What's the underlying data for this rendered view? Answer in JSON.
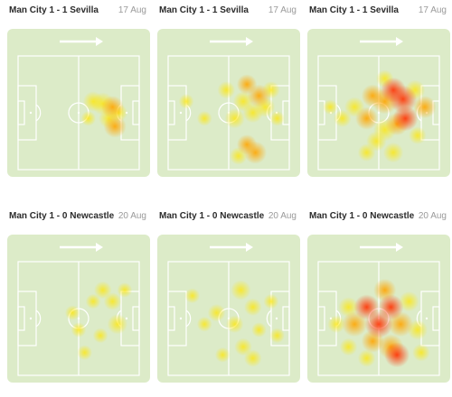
{
  "matches": [
    {
      "title": "Man City 1 - 1 Sevilla",
      "date": "17 Aug",
      "arrow_icon": "right-arrow-icon",
      "blobs": [
        [
          0.62,
          0.4,
          0.8,
          "y"
        ],
        [
          0.7,
          0.42,
          0.9,
          "y"
        ],
        [
          0.78,
          0.45,
          0.9,
          "o"
        ],
        [
          0.75,
          0.55,
          0.8,
          "y"
        ],
        [
          0.8,
          0.62,
          0.9,
          "o"
        ],
        [
          0.58,
          0.55,
          0.6,
          "y"
        ],
        [
          0.83,
          0.5,
          0.7,
          "y"
        ]
      ]
    },
    {
      "title": "Man City 1 - 1 Sevilla",
      "date": "17 Aug",
      "arrow_icon": "right-arrow-icon",
      "blobs": [
        [
          0.15,
          0.4,
          0.6,
          "y"
        ],
        [
          0.3,
          0.55,
          0.6,
          "y"
        ],
        [
          0.48,
          0.3,
          0.7,
          "y"
        ],
        [
          0.55,
          0.55,
          0.8,
          "y"
        ],
        [
          0.62,
          0.4,
          0.8,
          "y"
        ],
        [
          0.65,
          0.25,
          0.8,
          "o"
        ],
        [
          0.75,
          0.35,
          0.9,
          "o"
        ],
        [
          0.8,
          0.45,
          0.8,
          "y"
        ],
        [
          0.7,
          0.5,
          0.8,
          "y"
        ],
        [
          0.65,
          0.78,
          0.8,
          "o"
        ],
        [
          0.72,
          0.85,
          0.9,
          "o"
        ],
        [
          0.58,
          0.88,
          0.7,
          "y"
        ],
        [
          0.85,
          0.3,
          0.7,
          "y"
        ],
        [
          0.9,
          0.55,
          0.6,
          "y"
        ]
      ]
    },
    {
      "title": "Man City 1 - 1 Sevilla",
      "date": "17 Aug",
      "arrow_icon": "right-arrow-icon",
      "blobs": [
        [
          0.1,
          0.45,
          0.6,
          "y"
        ],
        [
          0.2,
          0.55,
          0.7,
          "y"
        ],
        [
          0.3,
          0.45,
          0.8,
          "y"
        ],
        [
          0.4,
          0.55,
          0.9,
          "o"
        ],
        [
          0.45,
          0.35,
          0.9,
          "o"
        ],
        [
          0.55,
          0.4,
          1.0,
          "o"
        ],
        [
          0.62,
          0.3,
          1.0,
          "r"
        ],
        [
          0.7,
          0.38,
          1.1,
          "r"
        ],
        [
          0.72,
          0.55,
          1.0,
          "r"
        ],
        [
          0.65,
          0.6,
          0.9,
          "o"
        ],
        [
          0.55,
          0.65,
          0.9,
          "y"
        ],
        [
          0.48,
          0.75,
          0.8,
          "y"
        ],
        [
          0.4,
          0.85,
          0.7,
          "y"
        ],
        [
          0.62,
          0.85,
          0.8,
          "y"
        ],
        [
          0.8,
          0.3,
          0.8,
          "y"
        ],
        [
          0.88,
          0.45,
          0.9,
          "o"
        ],
        [
          0.82,
          0.7,
          0.7,
          "y"
        ],
        [
          0.55,
          0.2,
          0.7,
          "y"
        ]
      ]
    },
    {
      "title": "Man City 1 - 0 Newcastle",
      "date": "20 Aug",
      "arrow_icon": "right-arrow-icon",
      "blobs": [
        [
          0.45,
          0.45,
          0.6,
          "y"
        ],
        [
          0.5,
          0.6,
          0.6,
          "y"
        ],
        [
          0.62,
          0.35,
          0.6,
          "y"
        ],
        [
          0.7,
          0.25,
          0.7,
          "y"
        ],
        [
          0.78,
          0.35,
          0.7,
          "y"
        ],
        [
          0.82,
          0.55,
          0.8,
          "y"
        ],
        [
          0.68,
          0.65,
          0.6,
          "y"
        ],
        [
          0.55,
          0.8,
          0.6,
          "y"
        ],
        [
          0.88,
          0.25,
          0.6,
          "y"
        ]
      ]
    },
    {
      "title": "Man City 1 - 0 Newcastle",
      "date": "20 Aug",
      "arrow_icon": "right-arrow-icon",
      "blobs": [
        [
          0.2,
          0.3,
          0.6,
          "y"
        ],
        [
          0.3,
          0.55,
          0.6,
          "y"
        ],
        [
          0.4,
          0.45,
          0.7,
          "y"
        ],
        [
          0.55,
          0.55,
          0.7,
          "y"
        ],
        [
          0.6,
          0.25,
          0.8,
          "y"
        ],
        [
          0.7,
          0.4,
          0.7,
          "y"
        ],
        [
          0.75,
          0.6,
          0.6,
          "y"
        ],
        [
          0.62,
          0.75,
          0.7,
          "y"
        ],
        [
          0.7,
          0.85,
          0.7,
          "y"
        ],
        [
          0.85,
          0.35,
          0.6,
          "y"
        ],
        [
          0.45,
          0.82,
          0.6,
          "y"
        ],
        [
          0.9,
          0.65,
          0.6,
          "y"
        ]
      ]
    },
    {
      "title": "Man City 1 - 0 Newcastle",
      "date": "20 Aug",
      "arrow_icon": "right-arrow-icon",
      "blobs": [
        [
          0.15,
          0.55,
          0.7,
          "y"
        ],
        [
          0.25,
          0.4,
          0.8,
          "y"
        ],
        [
          0.3,
          0.55,
          1.0,
          "o"
        ],
        [
          0.4,
          0.4,
          1.0,
          "r"
        ],
        [
          0.5,
          0.55,
          1.1,
          "r"
        ],
        [
          0.6,
          0.4,
          1.0,
          "r"
        ],
        [
          0.68,
          0.55,
          1.0,
          "o"
        ],
        [
          0.6,
          0.75,
          1.0,
          "o"
        ],
        [
          0.65,
          0.82,
          1.0,
          "r"
        ],
        [
          0.45,
          0.7,
          0.9,
          "o"
        ],
        [
          0.55,
          0.25,
          0.9,
          "o"
        ],
        [
          0.75,
          0.35,
          0.8,
          "y"
        ],
        [
          0.82,
          0.6,
          0.8,
          "y"
        ],
        [
          0.4,
          0.85,
          0.7,
          "y"
        ],
        [
          0.85,
          0.8,
          0.7,
          "y"
        ],
        [
          0.25,
          0.75,
          0.7,
          "y"
        ]
      ]
    }
  ]
}
